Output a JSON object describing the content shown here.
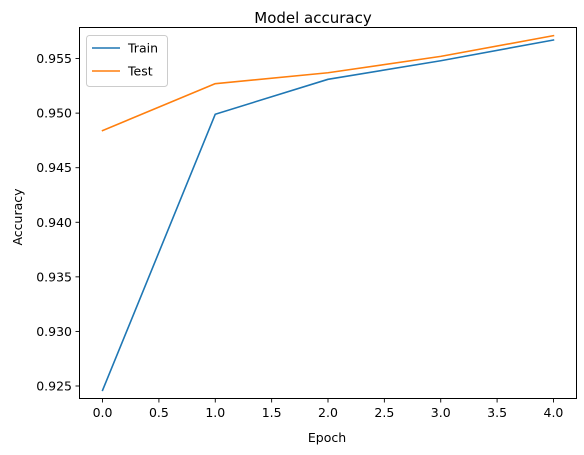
{
  "chart_data": {
    "type": "line",
    "title": "Model accuracy",
    "xlabel": "Epoch",
    "ylabel": "Accuracy",
    "x": [
      0,
      1,
      2,
      3,
      4
    ],
    "series": [
      {
        "name": "Train",
        "color": "#1f77b4",
        "values": [
          0.9246,
          0.9499,
          0.9531,
          0.9548,
          0.9567
        ]
      },
      {
        "name": "Test",
        "color": "#ff7f0e",
        "values": [
          0.9484,
          0.9527,
          0.9537,
          0.9552,
          0.9571
        ]
      }
    ],
    "xlim": [
      -0.2,
      4.2
    ],
    "ylim": [
      0.9239,
      0.9578
    ],
    "xticks": [
      0.0,
      0.5,
      1.0,
      1.5,
      2.0,
      2.5,
      3.0,
      3.5,
      4.0
    ],
    "xtick_labels": [
      "0.0",
      "0.5",
      "1.0",
      "1.5",
      "2.0",
      "2.5",
      "3.0",
      "3.5",
      "4.0"
    ],
    "yticks": [
      0.925,
      0.93,
      0.935,
      0.94,
      0.945,
      0.95,
      0.955
    ],
    "ytick_labels": [
      "0.925",
      "0.930",
      "0.935",
      "0.940",
      "0.945",
      "0.950",
      "0.955"
    ],
    "grid": false,
    "legend": "upper left"
  }
}
